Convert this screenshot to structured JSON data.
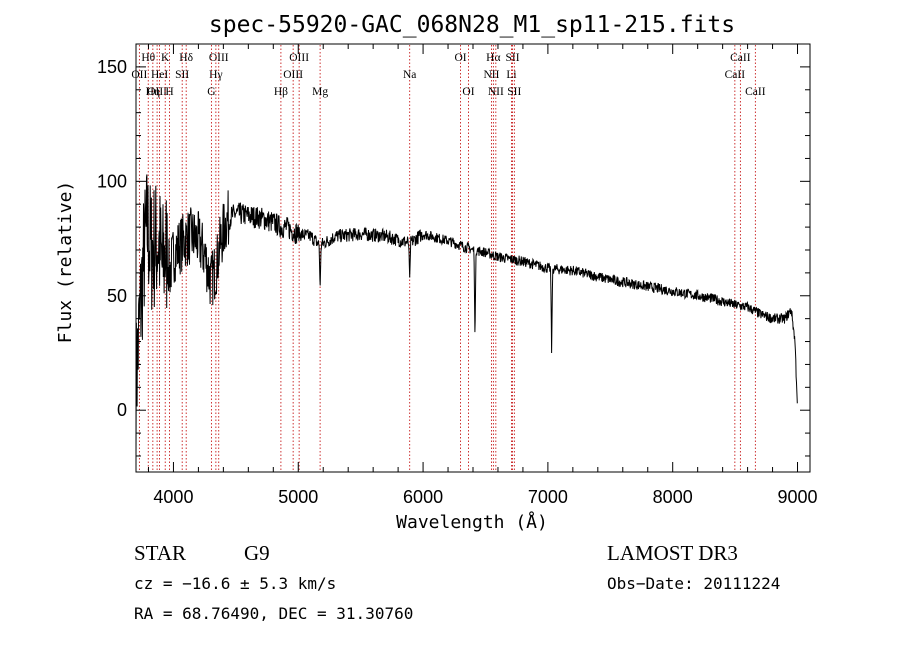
{
  "chart_data": {
    "type": "line",
    "title": "spec-55920-GAC_068N28_M1_sp11-215.fits",
    "xlabel": "Wavelength (Å)",
    "ylabel": "Flux (relative)",
    "xlim": [
      3700,
      9100
    ],
    "ylim": [
      -27,
      160
    ],
    "xticks": [
      4000,
      5000,
      6000,
      7000,
      8000,
      9000
    ],
    "yticks": [
      0,
      50,
      100,
      150
    ],
    "spectrum_anchors": {
      "x": [
        3700,
        3730,
        3760,
        3790,
        3820,
        3850,
        3880,
        3910,
        3940,
        3970,
        4000,
        4050,
        4100,
        4150,
        4200,
        4250,
        4300,
        4340,
        4380,
        4420,
        4450,
        4500,
        4600,
        4700,
        4800,
        4862,
        4900,
        5000,
        5100,
        5175,
        5300,
        5500,
        5700,
        5890,
        6000,
        6200,
        6400,
        6500,
        6600,
        6800,
        7000,
        7200,
        7500,
        7800,
        8000,
        8300,
        8500,
        8600,
        8700,
        8800,
        8900,
        8950,
        8980,
        9000
      ],
      "y": [
        10,
        40,
        65,
        80,
        70,
        72,
        74,
        62,
        70,
        60,
        68,
        72,
        75,
        76,
        74,
        68,
        56,
        62,
        74,
        82,
        84,
        86,
        85,
        84,
        82,
        80,
        80,
        77,
        76,
        72,
        76,
        77,
        76,
        73,
        77,
        74,
        70,
        69,
        67,
        65,
        62,
        61,
        57,
        54,
        52,
        49,
        46,
        45,
        42,
        40,
        40,
        44,
        30,
        0
      ]
    },
    "absorption_dips": [
      {
        "x": 5175,
        "y": 52
      },
      {
        "x": 5893,
        "y": 58
      },
      {
        "x": 6416,
        "y": 29
      },
      {
        "x": 7030,
        "y": 25
      }
    ],
    "spectral_lines": [
      {
        "label": "Hθ",
        "x": 3798,
        "row": 1
      },
      {
        "label": "OII",
        "x": 3727,
        "row": 2
      },
      {
        "label": "OIII",
        "x": 3869,
        "row": 3
      },
      {
        "label": "Hη",
        "x": 3835,
        "row": 3
      },
      {
        "label": "K",
        "x": 3934,
        "row": 1
      },
      {
        "label": "HeI",
        "x": 3889,
        "row": 2
      },
      {
        "label": "H",
        "x": 3969,
        "row": 3
      },
      {
        "label": "Hδ",
        "x": 4102,
        "row": 1
      },
      {
        "label": "SII",
        "x": 4070,
        "row": 2
      },
      {
        "label": "OIII",
        "x": 4363,
        "row": 1
      },
      {
        "label": "Hγ",
        "x": 4340,
        "row": 2
      },
      {
        "label": "G",
        "x": 4304,
        "row": 3
      },
      {
        "label": "Hβ",
        "x": 4861,
        "row": 3
      },
      {
        "label": "OIII",
        "x": 5007,
        "row": 1
      },
      {
        "label": "OIII",
        "x": 4959,
        "row": 2
      },
      {
        "label": "Mg",
        "x": 5175,
        "row": 3
      },
      {
        "label": "Na",
        "x": 5893,
        "row": 2
      },
      {
        "label": "OI",
        "x": 6300,
        "row": 1
      },
      {
        "label": "OI",
        "x": 6364,
        "row": 3
      },
      {
        "label": "Hα",
        "x": 6563,
        "row": 1
      },
      {
        "label": "NII",
        "x": 6548,
        "row": 2
      },
      {
        "label": "NII",
        "x": 6583,
        "row": 3
      },
      {
        "label": "SII",
        "x": 6717,
        "row": 1
      },
      {
        "label": "Li",
        "x": 6708,
        "row": 2
      },
      {
        "label": "SII",
        "x": 6731,
        "row": 3
      },
      {
        "label": "CaII",
        "x": 8542,
        "row": 1
      },
      {
        "label": "CaII",
        "x": 8498,
        "row": 2
      },
      {
        "label": "CaII",
        "x": 8662,
        "row": 3
      }
    ]
  },
  "info": {
    "class": "STAR",
    "subclass": "G9",
    "survey": "LAMOST DR3",
    "redshift": "cz = −16.6 ± 5.3 km/s",
    "obs_date": "Obs−Date: 20111224",
    "coords": "RA =  68.76490, DEC =  31.30760"
  },
  "colors": {
    "line_marker": "#c00000",
    "spectrum": "#000000"
  }
}
